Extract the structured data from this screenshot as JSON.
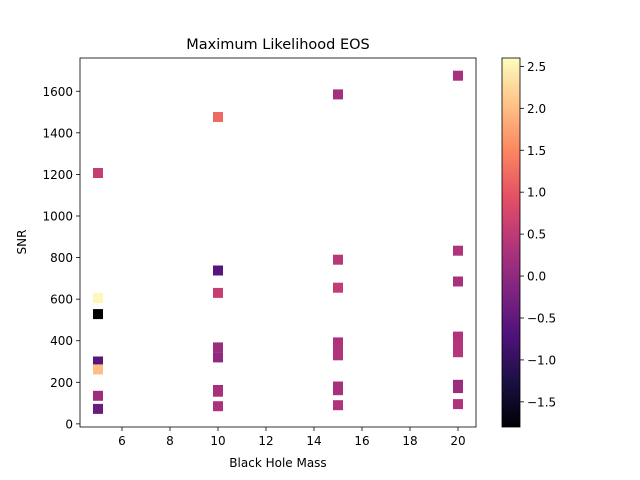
{
  "chart_data": {
    "type": "scatter",
    "title": "Maximum Likelihood EOS",
    "xlabel": "Black Hole Mass",
    "ylabel": "SNR",
    "xlim": [
      4.25,
      20.75
    ],
    "ylim": [
      -15,
      1760
    ],
    "xticks": [
      6,
      8,
      10,
      12,
      14,
      16,
      18,
      20
    ],
    "yticks": [
      0,
      200,
      400,
      600,
      800,
      1000,
      1200,
      1400,
      1600
    ],
    "marker": "square",
    "grid": false,
    "colormap": "magma",
    "colorbar": {
      "range": [
        -1.8,
        2.6
      ],
      "ticks": [
        2.5,
        2.0,
        1.5,
        1.0,
        0.5,
        0.0,
        -0.5,
        -1.0,
        -1.5
      ],
      "tick_labels": [
        "2.5",
        "2.0",
        "1.5",
        "1.0",
        "0.5",
        "0.0",
        "−0.5",
        "−1.0",
        "−1.5"
      ]
    },
    "points": [
      {
        "x": 5,
        "y": 1207,
        "c": 0.6
      },
      {
        "x": 5,
        "y": 605,
        "c": 2.55
      },
      {
        "x": 5,
        "y": 528,
        "c": -1.8
      },
      {
        "x": 5,
        "y": 300,
        "c": -0.6
      },
      {
        "x": 5,
        "y": 262,
        "c": 2.0
      },
      {
        "x": 5,
        "y": 135,
        "c": 0.15
      },
      {
        "x": 5,
        "y": 72,
        "c": -0.4
      },
      {
        "x": 10,
        "y": 1476,
        "c": 1.2
      },
      {
        "x": 10,
        "y": 738,
        "c": -0.6
      },
      {
        "x": 10,
        "y": 630,
        "c": 0.6
      },
      {
        "x": 10,
        "y": 368,
        "c": 0.1
      },
      {
        "x": 10,
        "y": 320,
        "c": 0.0
      },
      {
        "x": 10,
        "y": 163,
        "c": 0.2
      },
      {
        "x": 10,
        "y": 155,
        "c": 0.25
      },
      {
        "x": 10,
        "y": 85,
        "c": 0.3
      },
      {
        "x": 15,
        "y": 1585,
        "c": 0.2
      },
      {
        "x": 15,
        "y": 790,
        "c": 0.45
      },
      {
        "x": 15,
        "y": 655,
        "c": 0.55
      },
      {
        "x": 15,
        "y": 392,
        "c": 0.3
      },
      {
        "x": 15,
        "y": 362,
        "c": 0.35
      },
      {
        "x": 15,
        "y": 330,
        "c": 0.35
      },
      {
        "x": 15,
        "y": 180,
        "c": 0.25
      },
      {
        "x": 15,
        "y": 162,
        "c": 0.25
      },
      {
        "x": 15,
        "y": 90,
        "c": 0.35
      },
      {
        "x": 20,
        "y": 1675,
        "c": 0.25
      },
      {
        "x": 20,
        "y": 833,
        "c": 0.35
      },
      {
        "x": 20,
        "y": 685,
        "c": 0.25
      },
      {
        "x": 20,
        "y": 420,
        "c": 0.35
      },
      {
        "x": 20,
        "y": 375,
        "c": 0.4
      },
      {
        "x": 20,
        "y": 345,
        "c": 0.4
      },
      {
        "x": 20,
        "y": 188,
        "c": 0.1
      },
      {
        "x": 20,
        "y": 172,
        "c": 0.15
      },
      {
        "x": 20,
        "y": 95,
        "c": 0.35
      }
    ]
  }
}
